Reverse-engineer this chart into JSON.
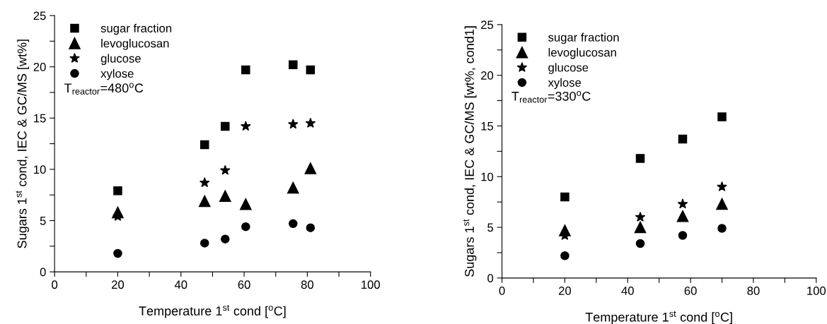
{
  "chart_data": [
    {
      "type": "scatter",
      "xlabel": "Temperature 1$^{st}$ cond [$^{o}$C]",
      "ylabel": "Sugars 1$^{st}$ cond, IEC & GC/MS [wt%]",
      "annotations": [
        "T$_{reactor}$=480$^{o}$C"
      ],
      "x": [
        20,
        47.5,
        54,
        60.5,
        75.5,
        81
      ],
      "series": [
        {
          "name": "sugar fraction",
          "color": "#000000",
          "marker": "square",
          "values": [
            7.9,
            12.4,
            14.2,
            19.7,
            20.2,
            19.7
          ]
        },
        {
          "name": "levoglucosan",
          "color": "#000000",
          "marker": "triangle",
          "values": [
            5.8,
            6.9,
            7.4,
            6.6,
            8.2,
            10.1
          ]
        },
        {
          "name": "glucose",
          "color": "#000000",
          "marker": "star",
          "values": [
            5.4,
            8.7,
            9.9,
            14.2,
            14.4,
            14.5
          ]
        },
        {
          "name": "xylose",
          "color": "#000000",
          "marker": "circle",
          "values": [
            1.8,
            2.8,
            3.2,
            4.4,
            4.7,
            4.3
          ]
        }
      ],
      "xlim": [
        0,
        100
      ],
      "ylim": [
        0,
        25
      ],
      "xticks": [
        0,
        {
          "value": 10,
          "label": null
        },
        20,
        {
          "value": 30,
          "label": null
        },
        40,
        {
          "value": 50,
          "label": null
        },
        60,
        {
          "value": 70,
          "label": null
        },
        80,
        {
          "value": 90,
          "label": null
        },
        100
      ],
      "yticks": [
        0,
        {
          "value": 2.5,
          "label": null
        },
        5,
        {
          "value": 7.5,
          "label": null
        },
        10,
        {
          "value": 12.5,
          "label": null
        },
        15,
        {
          "value": 17.5,
          "label": null
        },
        20,
        {
          "value": 22.5,
          "label": null
        },
        25
      ],
      "legend": "top left",
      "grid": false
    },
    {
      "type": "scatter",
      "xlabel": "Temperature 1$^{st}$ cond [$^{o}$C]",
      "ylabel": "Sugars 1$^{st}$ cond, IEC & GC/MS [wt%, cond1]",
      "annotations": [
        "T$_{reactor}$=330$^{o}$C"
      ],
      "x": [
        20,
        44,
        57.5,
        70
      ],
      "series": [
        {
          "name": "sugar fraction",
          "color": "#000000",
          "marker": "square",
          "values": [
            8.0,
            11.8,
            13.7,
            15.9
          ]
        },
        {
          "name": "levoglucosan",
          "color": "#000000",
          "marker": "triangle",
          "values": [
            4.7,
            5.0,
            6.1,
            7.3
          ]
        },
        {
          "name": "glucose",
          "color": "#000000",
          "marker": "star",
          "values": [
            4.2,
            6.0,
            7.3,
            9.0
          ]
        },
        {
          "name": "xylose",
          "color": "#000000",
          "marker": "circle",
          "values": [
            2.2,
            3.4,
            4.2,
            4.9
          ]
        }
      ],
      "xlim": [
        0,
        100
      ],
      "ylim": [
        0,
        25
      ],
      "xticks": [
        0,
        {
          "value": 10,
          "label": null
        },
        20,
        {
          "value": 30,
          "label": null
        },
        40,
        {
          "value": 50,
          "label": null
        },
        60,
        {
          "value": 70,
          "label": null
        },
        80,
        {
          "value": 90,
          "label": null
        },
        100
      ],
      "yticks": [
        0,
        {
          "value": 2.5,
          "label": null
        },
        5,
        {
          "value": 7.5,
          "label": null
        },
        10,
        {
          "value": 12.5,
          "label": null
        },
        15,
        {
          "value": 17.5,
          "label": null
        },
        20,
        {
          "value": 22.5,
          "label": null
        },
        25
      ],
      "legend": "top left",
      "grid": false
    }
  ]
}
